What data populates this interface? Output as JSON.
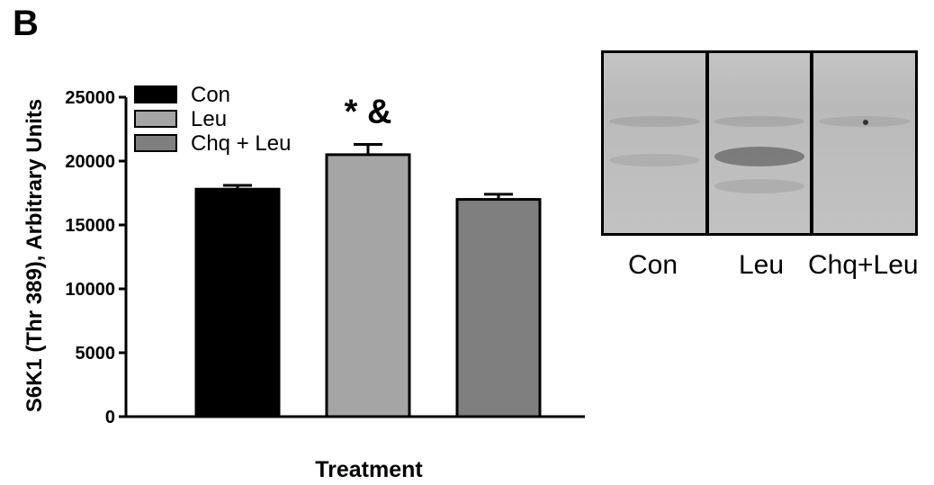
{
  "panel_label": "B",
  "chart_data": {
    "type": "bar",
    "categories": [
      "Con",
      "Leu",
      "Chq + Leu"
    ],
    "values": [
      17800,
      20500,
      17000
    ],
    "errors": [
      300,
      800,
      400
    ],
    "colors": [
      "#000000",
      "#a5a5a5",
      "#7f7f7f"
    ],
    "legend": [
      "Con",
      "Leu",
      "Chq + Leu"
    ],
    "legend_position": "top-left",
    "annotations": [
      {
        "category": "Leu",
        "text": "* &"
      }
    ],
    "ylabel": "S6K1 (Thr 389), Arbitrary Units",
    "xlabel": "Treatment",
    "ylim": [
      0,
      25000
    ],
    "yticks": [
      0,
      5000,
      10000,
      15000,
      20000,
      25000
    ],
    "grid": false
  },
  "blot": {
    "lanes": [
      "Con",
      "Leu",
      "Chq+Leu"
    ]
  }
}
